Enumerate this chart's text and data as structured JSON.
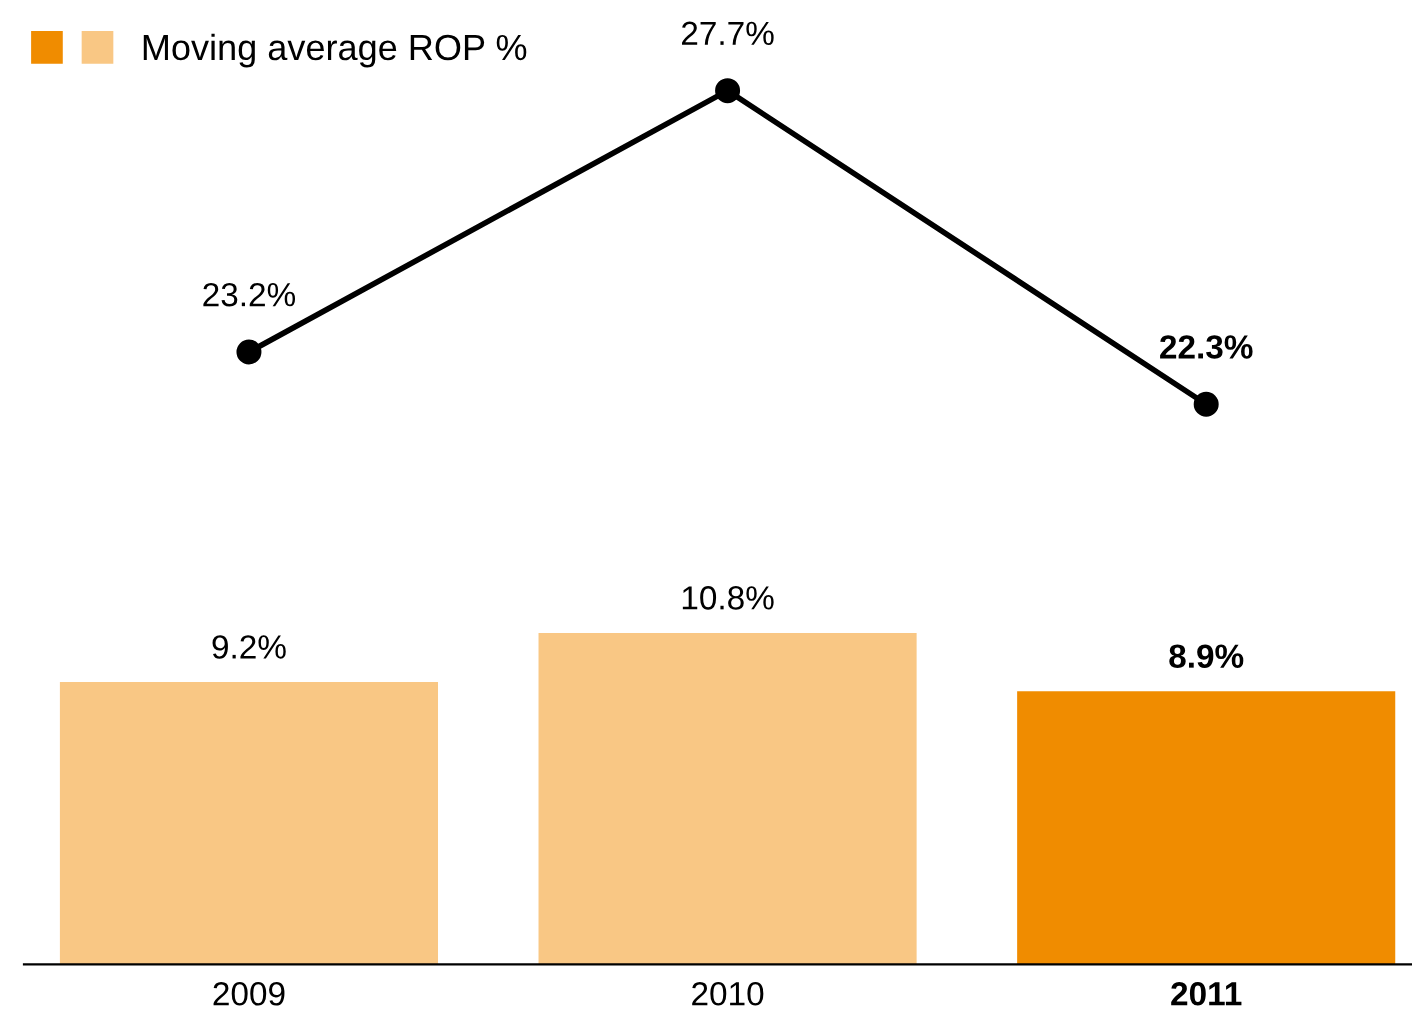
{
  "chart_data": [
    {
      "type": "line",
      "categories": [
        "2009",
        "2010",
        "2011"
      ],
      "tick_labels": false,
      "marker": "circle",
      "series": [
        {
          "color": "#000000",
          "values": [
            23.2,
            27.7,
            22.3
          ],
          "value_labels": [
            "23.2%",
            "27.7%",
            "22.3%"
          ]
        }
      ]
    },
    {
      "type": "bar",
      "categories": [
        "2009",
        "2010",
        "2011"
      ],
      "tick_labels": "x",
      "legend": "top left",
      "series": [
        {
          "name": "Moving average ROP %",
          "values": [
            9.2,
            10.8,
            8.9
          ],
          "value_labels": [
            "9.2%",
            "10.8%",
            "8.9%"
          ],
          "colors": [
            "#f9c784",
            "#f9c784",
            "#f08c00"
          ]
        }
      ]
    }
  ]
}
